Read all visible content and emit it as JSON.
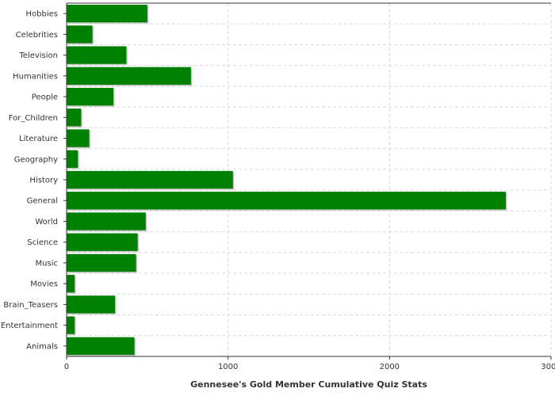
{
  "chart_data": {
    "type": "bar",
    "orientation": "horizontal",
    "categories": [
      "Hobbies",
      "Celebrities",
      "Television",
      "Humanities",
      "People",
      "For_Children",
      "Literature",
      "Geography",
      "History",
      "General",
      "World",
      "Science",
      "Music",
      "Movies",
      "Brain_Teasers",
      "Entertainment",
      "Animals"
    ],
    "values": [
      500,
      160,
      370,
      770,
      290,
      90,
      140,
      70,
      1030,
      2720,
      490,
      440,
      430,
      50,
      300,
      50,
      420
    ],
    "xlabel": "Gennesee's Gold Member Cumulative Quiz Stats",
    "xlim": [
      0,
      3000
    ],
    "xticks": [
      0,
      1000,
      2000,
      3000
    ],
    "grid": true,
    "bar_color": "#008000"
  }
}
